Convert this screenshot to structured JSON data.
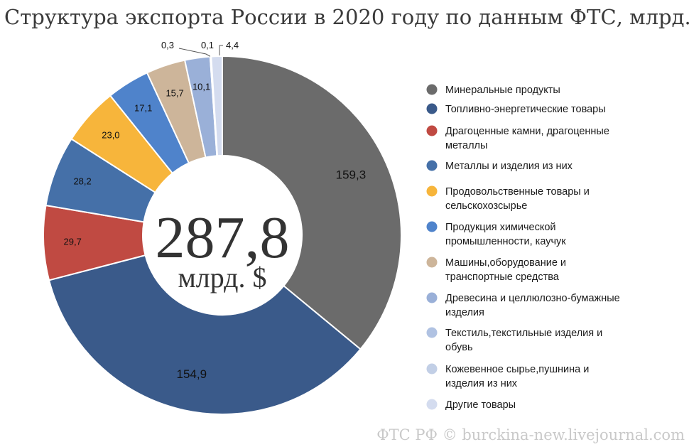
{
  "chart_data": {
    "type": "pie",
    "title": "Структура экспорта России в 2020 году по данным ФТС, млрд. $",
    "center_total": "287,8",
    "center_unit": "млрд. $",
    "slices": [
      {
        "label": "Минеральные продукты",
        "value": 159.3,
        "display": "159,3",
        "color": "#6b6b6b"
      },
      {
        "label": "Топливно-энергетические товары",
        "value": 154.9,
        "display": "154,9",
        "color": "#3a5a8a"
      },
      {
        "label": "Драгоценные камни, драгоценные металлы",
        "value": 29.7,
        "display": "29,7",
        "color": "#c04a42"
      },
      {
        "label": "Металлы и изделия из них",
        "value": 28.2,
        "display": "28,2",
        "color": "#4570a8"
      },
      {
        "label": "Продовольственные товары и сельскохозсырье",
        "value": 23.0,
        "display": "23,0",
        "color": "#f7b53b"
      },
      {
        "label": "Продукция химической промышленности, каучук",
        "value": 17.1,
        "display": "17,1",
        "color": "#4f83cb"
      },
      {
        "label": "Машины,оборудование и транспортные средства",
        "value": 15.7,
        "display": "15,7",
        "color": "#cdb59a"
      },
      {
        "label": "Древесина и целлюлозно-бумажные изделия",
        "value": 10.1,
        "display": "10,1",
        "color": "#9ab0d8"
      },
      {
        "label": "Текстиль,текстильные изделия и обувь",
        "value": 0.3,
        "display": "0,3",
        "color": "#b0c2e2"
      },
      {
        "label": "Кожевенное сырье,пушнина и изделия из них",
        "value": 0.1,
        "display": "0,1",
        "color": "#c2cfe6"
      },
      {
        "label": "Другие товары",
        "value": 4.4,
        "display": "4,4",
        "color": "#d4dcef"
      }
    ],
    "legend": {
      "placement": "right",
      "items": [
        {
          "marker": "#6b6b6b",
          "lines": [
            "Минеральные продукты"
          ]
        },
        {
          "marker": "#3a5a8a",
          "lines": [
            "Топливно-энергетические товары"
          ]
        },
        {
          "marker": "#c04a42",
          "lines": [
            "Драгоценные камни, драгоценные",
            "металлы"
          ]
        },
        {
          "marker": "#4570a8",
          "lines": [
            "Металлы и изделия из них"
          ]
        },
        {
          "marker": "#f7b53b",
          "lines": [
            "Продовольственные товары и",
            "сельскохозсырье"
          ]
        },
        {
          "marker": "#4f83cb",
          "lines": [
            "Продукция химической",
            "промышленности, каучук"
          ]
        },
        {
          "marker": "#cdb59a",
          "lines": [
            "Машины,оборудование и",
            "транспортные средства"
          ]
        },
        {
          "marker": "#9ab0d8",
          "lines": [
            "Древесина и целлюлозно-бумажные",
            "изделия"
          ]
        },
        {
          "marker": "#b0c2e2",
          "lines": [
            "Текстиль,текстильные изделия и",
            "обувь"
          ]
        },
        {
          "marker": "#c2cfe6",
          "lines": [
            "Кожевенное сырье,пушнина и",
            "изделия из них"
          ]
        },
        {
          "marker": "#d4dcef",
          "lines": [
            "Другие товары"
          ]
        }
      ]
    },
    "watermark": "ФТС РФ © burckina-new.livejournal.com"
  }
}
